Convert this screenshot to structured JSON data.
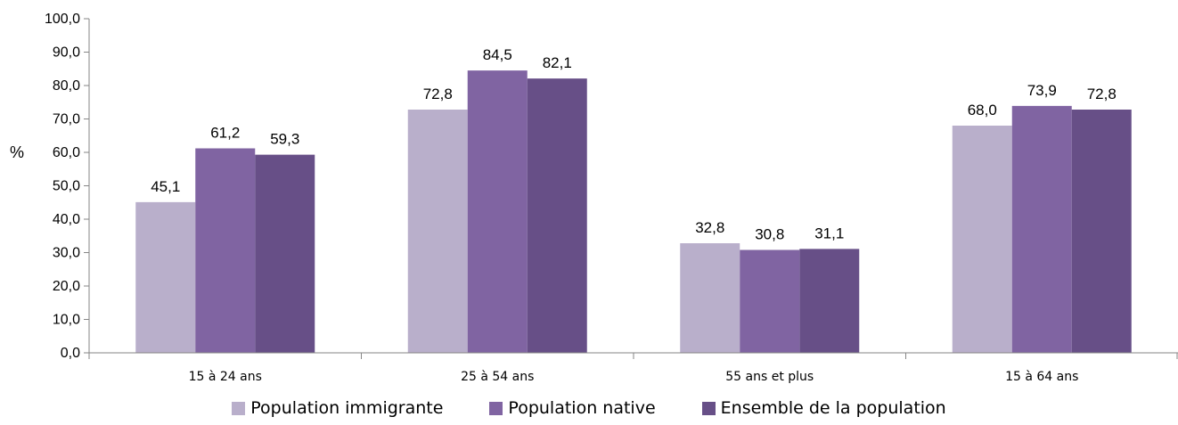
{
  "chart_data": {
    "type": "bar",
    "title": "",
    "xlabel": "",
    "ylabel": "%",
    "ylim": [
      0,
      100
    ],
    "yticks": [
      "0,0",
      "10,0",
      "20,0",
      "30,0",
      "40,0",
      "50,0",
      "60,0",
      "70,0",
      "80,0",
      "90,0",
      "100,0"
    ],
    "categories": [
      "15 à 24 ans",
      "25 à 54 ans",
      "55 ans et plus",
      "15 à 64 ans"
    ],
    "series": [
      {
        "name": "Population immigrante",
        "color": "#b9afcb",
        "values": [
          45.1,
          72.8,
          32.8,
          68.0
        ],
        "labels": [
          "45,1",
          "72,8",
          "32,8",
          "68,0"
        ]
      },
      {
        "name": "Population native",
        "color": "#8064a2",
        "values": [
          61.2,
          84.5,
          30.8,
          73.9
        ],
        "labels": [
          "61,2",
          "84,5",
          "30,8",
          "73,9"
        ]
      },
      {
        "name": "Ensemble de la population",
        "color": "#674f87",
        "values": [
          59.3,
          82.1,
          31.1,
          72.8
        ],
        "labels": [
          "59,3",
          "82,1",
          "31,1",
          "72,8"
        ]
      }
    ],
    "grid": false,
    "legend_position": "bottom"
  }
}
